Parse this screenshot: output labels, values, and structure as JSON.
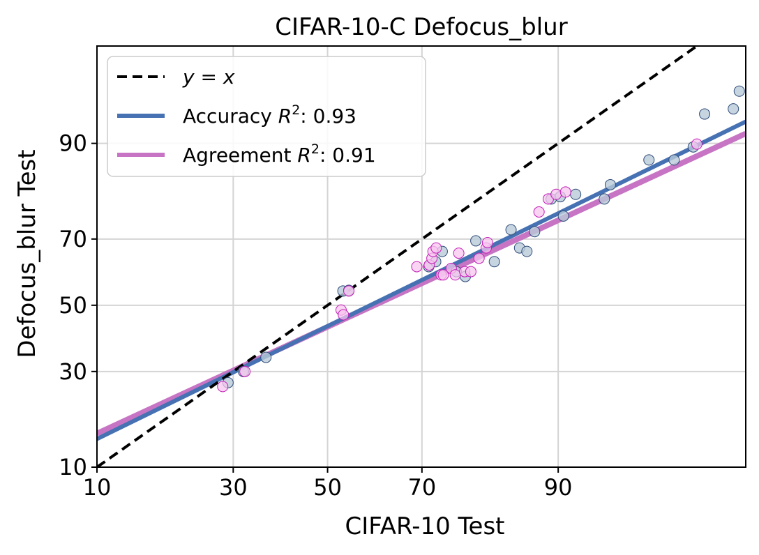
{
  "chart_data": {
    "type": "scatter",
    "title": "CIFAR-10-C Defocus_blur",
    "xlabel": "CIFAR-10 Test",
    "ylabel": "Defocus_blur Test",
    "x_ticks": [
      10,
      30,
      50,
      70,
      90
    ],
    "y_ticks": [
      10,
      30,
      50,
      70,
      90
    ],
    "x_scale": "probit",
    "y_scale": "probit",
    "xlim": [
      10,
      99
    ],
    "ylim": [
      10,
      98
    ],
    "grid": true,
    "legend_position": "top-left",
    "legend": [
      {
        "key": "ref",
        "label_pre": "",
        "label_var": "y = x",
        "label_sup": "",
        "label_post": ""
      },
      {
        "key": "acc",
        "label_pre": "Accuracy ",
        "label_var": "R",
        "label_sup": "2",
        "label_post": ": 0.93"
      },
      {
        "key": "agr",
        "label_pre": "Agreement ",
        "label_var": "R",
        "label_sup": "2",
        "label_post": ": 0.91"
      }
    ],
    "colors": {
      "reference": "#000000",
      "accuracy": "#4671b2",
      "agreement": "#c674c3",
      "accuracy_fill": "#b8cbd8",
      "accuracy_edge": "#2e4a78",
      "agreement_fill": "#f7c6ef",
      "agreement_edge": "#c21db5",
      "grid": "#d4d4d4"
    },
    "series": [
      {
        "key": "accuracy",
        "type": "scatter",
        "points": [
          [
            29.0,
            27.0
          ],
          [
            32.0,
            30.0
          ],
          [
            36.6,
            34.0
          ],
          [
            53.4,
            54.5
          ],
          [
            54.7,
            54.7
          ],
          [
            71.3,
            62.0
          ],
          [
            72.6,
            63.5
          ],
          [
            73.8,
            66.5
          ],
          [
            76.3,
            60.5
          ],
          [
            77.8,
            59.0
          ],
          [
            79.5,
            69.5
          ],
          [
            82.3,
            63.5
          ],
          [
            84.6,
            72.5
          ],
          [
            85.7,
            67.5
          ],
          [
            86.6,
            66.5
          ],
          [
            87.5,
            72.0
          ],
          [
            89.3,
            80.0
          ],
          [
            90.2,
            80.5
          ],
          [
            90.5,
            76.0
          ],
          [
            91.6,
            81.0
          ],
          [
            93.8,
            80.0
          ],
          [
            94.2,
            83.0
          ],
          [
            96.3,
            87.5
          ],
          [
            97.3,
            87.5
          ],
          [
            97.9,
            89.5
          ],
          [
            98.2,
            93.5
          ],
          [
            98.8,
            94.0
          ],
          [
            98.9,
            95.5
          ]
        ]
      },
      {
        "key": "agreement",
        "type": "scatter",
        "points": [
          [
            28.0,
            26.0
          ],
          [
            32.3,
            30.0
          ],
          [
            53.0,
            48.5
          ],
          [
            53.5,
            47.0
          ],
          [
            54.7,
            54.5
          ],
          [
            69.0,
            62.0
          ],
          [
            71.4,
            62.5
          ],
          [
            71.9,
            64.5
          ],
          [
            72.1,
            66.5
          ],
          [
            72.7,
            67.5
          ],
          [
            73.6,
            59.5
          ],
          [
            74.0,
            59.5
          ],
          [
            75.4,
            61.5
          ],
          [
            76.1,
            59.5
          ],
          [
            76.7,
            66.0
          ],
          [
            77.7,
            60.5
          ],
          [
            78.7,
            60.5
          ],
          [
            80.0,
            64.5
          ],
          [
            81.1,
            67.5
          ],
          [
            81.3,
            69.0
          ],
          [
            88.0,
            77.0
          ],
          [
            89.0,
            80.0
          ],
          [
            89.8,
            81.0
          ],
          [
            90.7,
            81.5
          ],
          [
            98.0,
            89.9
          ]
        ]
      },
      {
        "key": "accuracy_fit",
        "type": "line",
        "from": [
          10,
          14.5
        ],
        "to": [
          99,
          92.7
        ]
      },
      {
        "key": "agreement_fit",
        "type": "line",
        "from": [
          10,
          15.5
        ],
        "to": [
          99,
          91.3
        ]
      },
      {
        "key": "reference",
        "type": "line",
        "from": [
          10,
          10
        ],
        "to": [
          99,
          99
        ]
      }
    ]
  }
}
